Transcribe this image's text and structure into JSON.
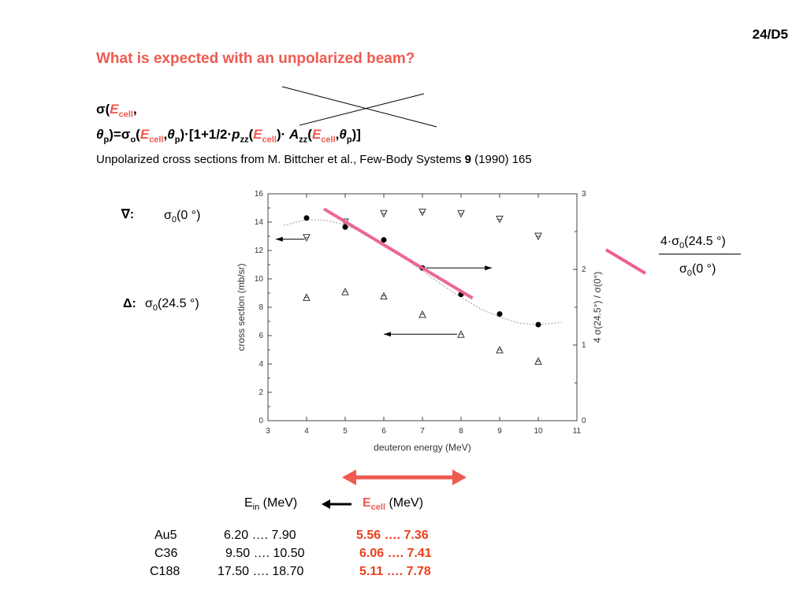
{
  "page_number": "24/D5",
  "heading": "What is expected with an unpolarized beam?",
  "formula": {
    "line1_a": "σ(",
    "line1_e": "E",
    "line1_sub": "cell",
    "line1_b": ",",
    "line2_theta": "θ",
    "line2_p": "p",
    "line2_eq": ")=σ",
    "line2_o": "o",
    "line2_open": "(",
    "line2_e": "E",
    "line2_cell": "cell",
    "line2_comma": ",",
    "line2_theta2": "θ",
    "line2_p2": "p",
    "line2_mid": ")·[1+1/2·",
    "line2_pzz": "p",
    "line2_zz": "zz",
    "line2_open2": "(",
    "line2_e2": "E",
    "line2_cell2": "cell",
    "line2_dot": ")· ",
    "line2_A": "A",
    "line2_zz2": "zz",
    "line2_open3": "(",
    "line2_e3": "E",
    "line2_cell3": "cell",
    "line2_comma3": ",",
    "line2_theta3": "θ",
    "line2_p3": "p",
    "line2_end": ")]"
  },
  "source": {
    "text": "Unpolarized cross sections from M. Bittcher et al., Few-Body Systems ",
    "vol": "9",
    "rest": " (1990) 165"
  },
  "legend": {
    "down_symbol": "∇:",
    "down_sigma": "σ",
    "down_sub": "0",
    "down_angle": "(0 °)",
    "up_symbol": "Δ:",
    "up_sigma": "σ",
    "up_sub": "0",
    "up_angle": "(24.5 °)"
  },
  "ratio": {
    "num_prefix": "4·σ",
    "num_sub": "0",
    "num_angle": "(24.5 °)",
    "den_sigma": "σ",
    "den_sub": "0",
    "den_angle": "(0 °)"
  },
  "energy": {
    "ein_label": "E",
    "ein_sub": "in",
    "ein_unit": " (MeV)",
    "ecell_label": "E",
    "ecell_sub": "cell",
    "ecell_unit": " (MeV)"
  },
  "table": [
    {
      "target": "Au5",
      "ein": "6.20 ….   7.90",
      "ecell": "5.56 …. 7.36"
    },
    {
      "target": "C36",
      "ein": "9.50 …. 10.50",
      "ecell": "6.06 …. 7.41"
    },
    {
      "target": "C188",
      "ein": "17.50 …. 18.70",
      "ecell": "5.11 …. 7.78"
    }
  ],
  "colors": {
    "accent": "#f05a50",
    "pink": "#ee5f8e",
    "table_red": "#e8401c"
  },
  "chart_data": {
    "type": "scatter",
    "xlabel": "deuteron energy (MeV)",
    "ylabel": "cross section (mb/sr)",
    "y2label": "4 σ(24.5°) / σ(0°)",
    "xlim": [
      3,
      11
    ],
    "ylim": [
      0,
      16
    ],
    "y2lim": [
      0,
      3
    ],
    "x_ticks": [
      3,
      4,
      5,
      6,
      7,
      8,
      9,
      10,
      11
    ],
    "y_ticks": [
      0,
      2,
      4,
      6,
      8,
      10,
      12,
      14,
      16
    ],
    "y2_ticks": [
      0,
      1,
      2,
      3
    ],
    "series": [
      {
        "marker": "down-triangle",
        "x": [
          4,
          5,
          6,
          7,
          8,
          9,
          10
        ],
        "y": [
          12.9,
          14.0,
          14.6,
          14.7,
          14.6,
          14.2,
          13.0
        ]
      },
      {
        "marker": "up-triangle",
        "x": [
          4,
          5,
          6,
          7,
          8,
          9,
          10
        ],
        "y": [
          8.7,
          9.1,
          8.8,
          7.5,
          6.1,
          5.0,
          4.2
        ]
      },
      {
        "marker": "filled-circle",
        "axis": "right",
        "x": [
          4,
          5,
          6,
          7,
          8,
          9,
          10
        ],
        "y": [
          2.68,
          2.56,
          2.39,
          2.02,
          1.67,
          1.41,
          1.27
        ]
      }
    ],
    "fit_curve": {
      "axis": "right",
      "x": [
        3.4,
        4.0,
        4.5,
        5.0,
        5.5,
        6.0,
        6.5,
        7.0,
        7.5,
        8.0,
        8.5,
        9.0,
        9.5,
        10.0,
        10.6
      ],
      "y": [
        2.58,
        2.66,
        2.65,
        2.59,
        2.48,
        2.33,
        2.16,
        1.98,
        1.8,
        1.63,
        1.48,
        1.37,
        1.29,
        1.27,
        1.3
      ]
    }
  }
}
